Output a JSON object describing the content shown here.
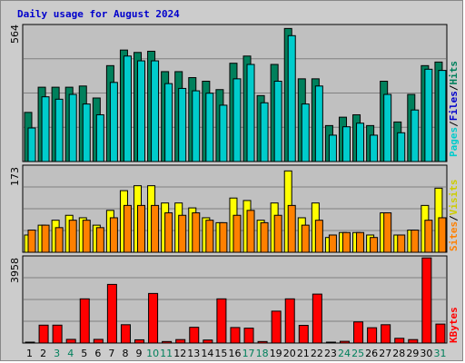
{
  "title": "Daily usage for August 2024",
  "colors": {
    "pages": "#00cccc",
    "files": "#0000cc",
    "hits": "#00805c",
    "sites": "#ff8000",
    "visits": "#ffff00",
    "kbytes": "#ff0000",
    "weekend_day": "#00805c",
    "weekday": "#000000"
  },
  "legend": {
    "top": [
      "Pages",
      "/",
      "Files",
      "/",
      "Hits"
    ],
    "middle": [
      "Sites",
      "/",
      "Visits"
    ],
    "bottom": [
      "KBytes"
    ]
  },
  "chart_data": {
    "type": "bar",
    "days": [
      "1",
      "2",
      "3",
      "4",
      "5",
      "6",
      "7",
      "8",
      "9",
      "10",
      "11",
      "12",
      "13",
      "14",
      "15",
      "16",
      "17",
      "18",
      "19",
      "20",
      "21",
      "22",
      "23",
      "24",
      "25",
      "26",
      "27",
      "28",
      "29",
      "30",
      "31"
    ],
    "weekend_days": [
      "3",
      "4",
      "10",
      "11",
      "17",
      "18",
      "24",
      "25",
      "31"
    ],
    "panels": [
      {
        "name": "hits-files-pages",
        "ymax_label": "564",
        "ymax": 564,
        "series": [
          {
            "name": "Hits",
            "values": [
              205,
              310,
              310,
              310,
              315,
              265,
              400,
              465,
              455,
              460,
              375,
              375,
              350,
              335,
              300,
              410,
              440,
              275,
              405,
              555,
              345,
              345,
              150,
              185,
              195,
              150,
              335,
              165,
              280,
              400,
              415
            ]
          },
          {
            "name": "Pages",
            "values": [
              140,
              270,
              260,
              280,
              240,
              195,
              330,
              440,
              420,
              420,
              325,
              305,
              295,
              285,
              235,
              345,
              405,
              245,
              335,
              525,
              240,
              315,
              110,
              145,
              160,
              110,
              280,
              120,
              215,
              385,
              380
            ]
          }
        ]
      },
      {
        "name": "visits-sites",
        "ymax_label": "173",
        "ymax": 173,
        "series": [
          {
            "name": "Visits",
            "values": [
              35,
              55,
              65,
              75,
              70,
              55,
              85,
              125,
              135,
              135,
              100,
              100,
              90,
              70,
              60,
              110,
              105,
              65,
              100,
              165,
              70,
              100,
              30,
              40,
              40,
              35,
              80,
              35,
              45,
              95,
              130
            ]
          },
          {
            "name": "Sites",
            "values": [
              45,
              55,
              50,
              65,
              65,
              50,
              70,
              95,
              95,
              95,
              80,
              75,
              80,
              65,
              60,
              75,
              85,
              60,
              75,
              95,
              55,
              65,
              35,
              40,
              40,
              30,
              80,
              35,
              45,
              65,
              70
            ]
          }
        ]
      },
      {
        "name": "kbytes",
        "ymax_label": "3958",
        "ymax": 3958,
        "series": [
          {
            "name": "KBytes",
            "values": [
              40,
              830,
              830,
              170,
              2050,
              170,
              2720,
              850,
              150,
              2300,
              70,
              160,
              730,
              140,
              2050,
              720,
              690,
              70,
              1480,
              2050,
              820,
              2270,
              40,
              80,
              980,
              710,
              850,
              220,
              160,
              3950,
              880
            ]
          }
        ]
      }
    ]
  }
}
